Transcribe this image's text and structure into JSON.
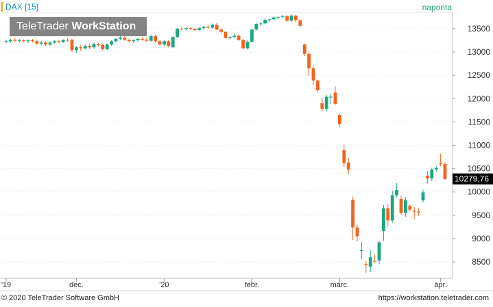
{
  "header": {
    "symbol_label": "DAX [15]",
    "period_label": "naponta"
  },
  "watermark": {
    "brand": "TeleTrader",
    "product": "WorkStation"
  },
  "footer": {
    "copyright": "© 2020 TeleTrader Software GmbH",
    "url": "https://workstation.teletrader.com"
  },
  "colors": {
    "up": "#1aa882",
    "down": "#f0641e",
    "grid": "#e0e0e0",
    "last_price_bg": "#000000"
  },
  "chart_data": {
    "type": "candlestick",
    "title": "DAX [15]",
    "ylim": [
      8150,
      13850
    ],
    "yticks": [
      8500,
      9000,
      9500,
      10000,
      10500,
      11000,
      11500,
      12000,
      12500,
      13000,
      13500
    ],
    "ytick_labels": [
      "8500",
      "9000",
      "9500",
      "10000",
      "10500",
      "11000",
      "11500",
      "12000",
      "12500",
      "13000",
      "13500"
    ],
    "x_labels": [
      {
        "label": "'19",
        "index": 0
      },
      {
        "label": "dec.",
        "index": 16
      },
      {
        "label": "'20",
        "index": 36
      },
      {
        "label": "febr.",
        "index": 56
      },
      {
        "label": "márc.",
        "index": 76
      },
      {
        "label": "ápr.",
        "index": 99
      }
    ],
    "last_price": 10279.76,
    "last_price_label": "10279,76",
    "candles": [
      [
        13230,
        13260,
        13190,
        13230
      ],
      [
        13230,
        13280,
        13200,
        13260
      ],
      [
        13260,
        13300,
        13220,
        13240
      ],
      [
        13240,
        13280,
        13210,
        13250
      ],
      [
        13250,
        13270,
        13200,
        13230
      ],
      [
        13230,
        13270,
        13190,
        13250
      ],
      [
        13250,
        13280,
        13200,
        13230
      ],
      [
        13230,
        13260,
        13150,
        13180
      ],
      [
        13180,
        13240,
        13140,
        13200
      ],
      [
        13200,
        13230,
        13130,
        13160
      ],
      [
        13160,
        13230,
        13130,
        13200
      ],
      [
        13200,
        13250,
        13180,
        13230
      ],
      [
        13230,
        13260,
        13190,
        13220
      ],
      [
        13220,
        13270,
        13190,
        13260
      ],
      [
        13260,
        13290,
        13220,
        13250
      ],
      [
        13260,
        13280,
        13000,
        13040
      ],
      [
        13040,
        13120,
        12980,
        13100
      ],
      [
        13100,
        13150,
        13020,
        13080
      ],
      [
        13080,
        13160,
        13050,
        13130
      ],
      [
        13130,
        13180,
        13060,
        13100
      ],
      [
        13100,
        13200,
        13070,
        13170
      ],
      [
        13170,
        13190,
        13110,
        13150
      ],
      [
        13150,
        13180,
        13030,
        13060
      ],
      [
        13060,
        13180,
        13040,
        13160
      ],
      [
        13160,
        13250,
        13130,
        13230
      ],
      [
        13230,
        13300,
        13200,
        13280
      ],
      [
        13280,
        13340,
        13250,
        13310
      ],
      [
        13310,
        13330,
        13240,
        13260
      ],
      [
        13260,
        13290,
        13200,
        13230
      ],
      [
        13230,
        13270,
        13190,
        13250
      ],
      [
        13250,
        13300,
        13210,
        13280
      ],
      [
        13280,
        13320,
        13240,
        13260
      ],
      [
        13260,
        13300,
        13220,
        13240
      ],
      [
        13240,
        13370,
        13220,
        13340
      ],
      [
        13340,
        13370,
        13200,
        13230
      ],
      [
        13230,
        13260,
        13140,
        13160
      ],
      [
        13160,
        13250,
        13130,
        13230
      ],
      [
        13230,
        13260,
        13100,
        13130
      ],
      [
        13100,
        13330,
        13080,
        13320
      ],
      [
        13320,
        13520,
        13300,
        13500
      ],
      [
        13500,
        13540,
        13460,
        13490
      ],
      [
        13490,
        13530,
        13460,
        13510
      ],
      [
        13510,
        13540,
        13470,
        13500
      ],
      [
        13500,
        13520,
        13450,
        13470
      ],
      [
        13470,
        13530,
        13450,
        13510
      ],
      [
        13510,
        13560,
        13480,
        13540
      ],
      [
        13540,
        13570,
        13490,
        13520
      ],
      [
        13520,
        13610,
        13500,
        13580
      ],
      [
        13580,
        13620,
        13470,
        13480
      ],
      [
        13480,
        13500,
        13390,
        13430
      ],
      [
        13430,
        13450,
        13280,
        13300
      ],
      [
        13300,
        13350,
        13250,
        13320
      ],
      [
        13320,
        13400,
        13300,
        13350
      ],
      [
        13350,
        13380,
        13240,
        13260
      ],
      [
        13260,
        13280,
        13050,
        13080
      ],
      [
        13080,
        13250,
        13050,
        13220
      ],
      [
        13220,
        13500,
        13200,
        13480
      ],
      [
        13480,
        13620,
        13460,
        13600
      ],
      [
        13600,
        13640,
        13560,
        13610
      ],
      [
        13610,
        13720,
        13590,
        13690
      ],
      [
        13690,
        13720,
        13650,
        13700
      ],
      [
        13700,
        13760,
        13680,
        13740
      ],
      [
        13740,
        13770,
        13700,
        13750
      ],
      [
        13750,
        13790,
        13720,
        13770
      ],
      [
        13770,
        13790,
        13650,
        13670
      ],
      [
        13670,
        13800,
        13650,
        13780
      ],
      [
        13780,
        13790,
        13640,
        13680
      ],
      [
        13680,
        13700,
        13540,
        13560
      ],
      [
        13160,
        13180,
        12910,
        12960
      ],
      [
        12960,
        12990,
        12480,
        12650
      ],
      [
        12650,
        12700,
        12300,
        12390
      ],
      [
        12390,
        12400,
        12140,
        12180
      ],
      [
        11900,
        12010,
        11720,
        11780
      ],
      [
        11780,
        12080,
        11730,
        12040
      ],
      [
        12040,
        12110,
        11890,
        12040
      ],
      [
        12130,
        12260,
        11870,
        11890
      ],
      [
        11650,
        11690,
        11390,
        11460
      ],
      [
        10900,
        11010,
        10540,
        10620
      ],
      [
        10630,
        10730,
        10380,
        10480
      ],
      [
        9830,
        9900,
        8970,
        9240
      ],
      [
        9240,
        9290,
        8940,
        9050
      ],
      [
        8740,
        8930,
        8560,
        8750
      ],
      [
        8460,
        8530,
        8270,
        8440
      ],
      [
        8400,
        8750,
        8280,
        8600
      ],
      [
        8520,
        8660,
        8480,
        8510
      ],
      [
        8530,
        8950,
        8450,
        8920
      ],
      [
        9160,
        9720,
        8950,
        9650
      ],
      [
        9650,
        9740,
        9260,
        9390
      ],
      [
        9390,
        10030,
        9340,
        9930
      ],
      [
        9930,
        10190,
        9880,
        10040
      ],
      [
        9850,
        9920,
        9510,
        9550
      ],
      [
        9550,
        9890,
        9470,
        9820
      ],
      [
        9700,
        9730,
        9580,
        9620
      ],
      [
        9600,
        9680,
        9420,
        9580
      ],
      [
        9580,
        9650,
        9480,
        9560
      ],
      [
        9820,
        10050,
        9780,
        9990
      ],
      [
        10350,
        10450,
        10180,
        10290
      ],
      [
        10290,
        10520,
        10230,
        10480
      ],
      [
        10480,
        10560,
        10430,
        10510
      ],
      [
        10620,
        10820,
        10550,
        10600
      ],
      [
        10600,
        10630,
        10260,
        10280
      ]
    ]
  }
}
